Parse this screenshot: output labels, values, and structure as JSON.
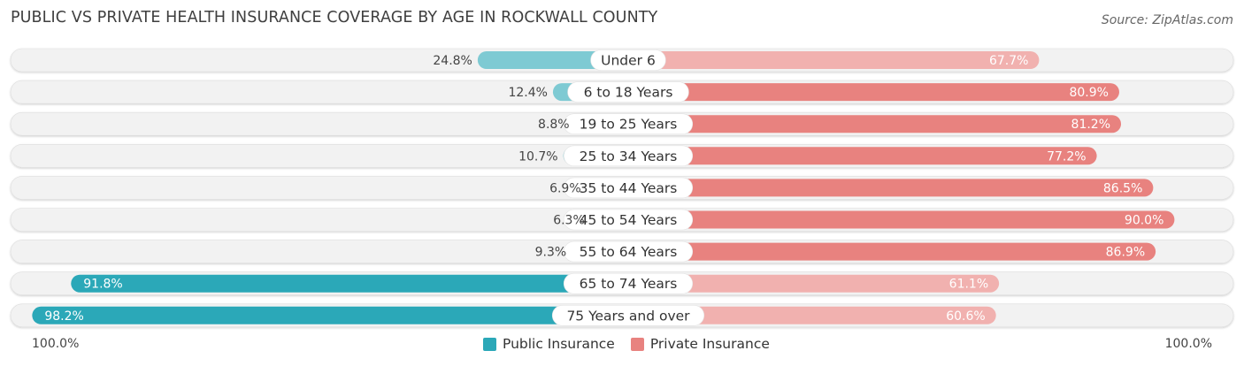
{
  "title": "PUBLIC VS PRIVATE HEALTH INSURANCE COVERAGE BY AGE IN ROCKWALL COUNTY",
  "source": "Source: ZipAtlas.com",
  "axis": {
    "left_label": "100.0%",
    "right_label": "100.0%"
  },
  "colors": {
    "public": "#2ba8b8",
    "public_light": "#7ecad3",
    "private": "#e8827f",
    "private_light": "#f1b1af",
    "track": "#f2f2f2"
  },
  "legend": {
    "public_label": "Public Insurance",
    "private_label": "Private Insurance"
  },
  "chart_data": {
    "type": "bar",
    "orientation": "horizontal-diverging",
    "title": "PUBLIC VS PRIVATE HEALTH INSURANCE COVERAGE BY AGE IN ROCKWALL COUNTY",
    "categories": [
      "Under 6",
      "6 to 18 Years",
      "19 to 25 Years",
      "25 to 34 Years",
      "35 to 44 Years",
      "45 to 54 Years",
      "55 to 64 Years",
      "65 to 74 Years",
      "75 Years and over"
    ],
    "series": [
      {
        "name": "Public Insurance",
        "values": [
          24.8,
          12.4,
          8.8,
          10.7,
          6.9,
          6.3,
          9.3,
          91.8,
          98.2
        ],
        "labels": [
          "24.8%",
          "12.4%",
          "8.8%",
          "10.7%",
          "6.9%",
          "6.3%",
          "9.3%",
          "91.8%",
          "98.2%"
        ]
      },
      {
        "name": "Private Insurance",
        "values": [
          67.7,
          80.9,
          81.2,
          77.2,
          86.5,
          90.0,
          86.9,
          61.1,
          60.6
        ],
        "labels": [
          "67.7%",
          "80.9%",
          "81.2%",
          "77.2%",
          "86.5%",
          "90.0%",
          "86.9%",
          "61.1%",
          "60.6%"
        ]
      }
    ],
    "xlim": [
      -100,
      100
    ],
    "legend_position": "bottom-center"
  }
}
